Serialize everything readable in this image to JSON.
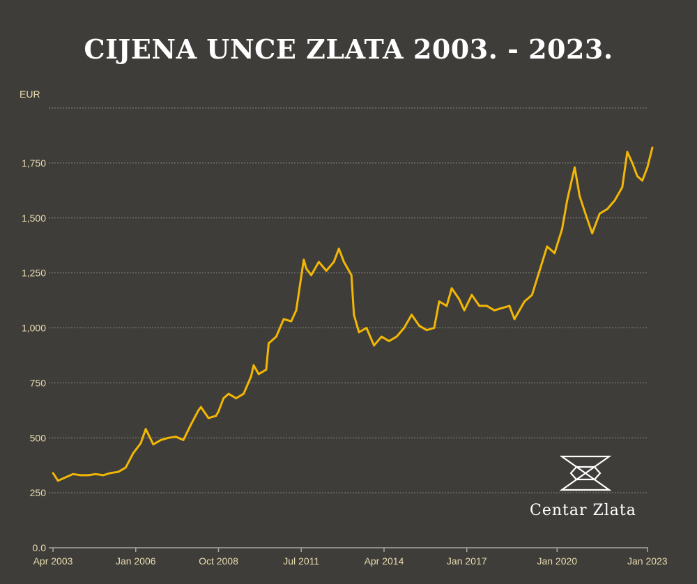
{
  "title": "CIJENA UNCE ZLATA 2003. - 2023.",
  "brand": {
    "name": "Centar Zlata",
    "icon": "hourglass-logo-icon"
  },
  "colors": {
    "background": "#3f3d39",
    "line": "#f2b705",
    "text": "#e8dcb0",
    "grid": "#8a8780"
  },
  "chart_data": {
    "type": "line",
    "title": "CIJENA UNCE ZLATA 2003. - 2023.",
    "ylabel": "EUR",
    "xlabel": "",
    "ylim": [
      0,
      2000
    ],
    "xlim": [
      "2003-04",
      "2023-03"
    ],
    "yticks": [
      0,
      250,
      500,
      750,
      1000,
      1250,
      1500,
      1750
    ],
    "ytick_labels": [
      "0.0",
      "250",
      "500",
      "750",
      "1,000",
      "1,250",
      "1,500",
      "1,750"
    ],
    "xticks": [
      "2003-04",
      "2006-01",
      "2008-10",
      "2011-07",
      "2014-04",
      "2017-01",
      "2020-01",
      "2023-01"
    ],
    "xtick_labels": [
      "Apr 2003",
      "Jan 2006",
      "Oct 2008",
      "Jul 2011",
      "Apr 2014",
      "Jan 2017",
      "Jan 2020",
      "Jan 2023"
    ],
    "grid": true,
    "legend": "none",
    "series": [
      {
        "x": [
          "2003-04",
          "2003-06",
          "2003-09",
          "2003-12",
          "2004-03",
          "2004-06",
          "2004-09",
          "2004-12",
          "2005-03",
          "2005-06",
          "2005-09",
          "2005-12",
          "2006-03",
          "2006-05",
          "2006-08",
          "2006-11",
          "2007-02",
          "2007-05",
          "2007-08",
          "2007-11",
          "2008-02",
          "2008-03",
          "2008-06",
          "2008-09",
          "2008-10",
          "2008-12",
          "2009-02",
          "2009-05",
          "2009-08",
          "2009-11",
          "2009-12",
          "2010-02",
          "2010-05",
          "2010-06",
          "2010-09",
          "2010-12",
          "2011-03",
          "2011-05",
          "2011-08",
          "2011-09",
          "2011-11",
          "2012-02",
          "2012-05",
          "2012-08",
          "2012-10",
          "2012-12",
          "2013-03",
          "2013-04",
          "2013-06",
          "2013-09",
          "2013-12",
          "2014-03",
          "2014-06",
          "2014-09",
          "2014-12",
          "2015-03",
          "2015-06",
          "2015-09",
          "2015-12",
          "2016-02",
          "2016-05",
          "2016-07",
          "2016-10",
          "2016-12",
          "2017-03",
          "2017-06",
          "2017-09",
          "2017-12",
          "2018-03",
          "2018-06",
          "2018-08",
          "2018-10",
          "2018-12",
          "2019-03",
          "2019-06",
          "2019-09",
          "2019-12",
          "2020-03",
          "2020-05",
          "2020-08",
          "2020-10",
          "2020-12",
          "2021-03",
          "2021-06",
          "2021-09",
          "2021-12",
          "2022-03",
          "2022-05",
          "2022-07",
          "2022-09",
          "2022-11",
          "2023-01",
          "2023-03"
        ],
        "y": [
          340,
          305,
          320,
          335,
          330,
          330,
          335,
          330,
          340,
          345,
          365,
          430,
          475,
          540,
          470,
          490,
          500,
          505,
          490,
          560,
          625,
          640,
          590,
          600,
          620,
          680,
          700,
          680,
          700,
          780,
          830,
          790,
          810,
          930,
          960,
          1040,
          1030,
          1080,
          1310,
          1270,
          1240,
          1300,
          1260,
          1300,
          1360,
          1300,
          1240,
          1060,
          980,
          1000,
          920,
          960,
          940,
          960,
          1000,
          1060,
          1010,
          990,
          1000,
          1120,
          1100,
          1180,
          1130,
          1080,
          1150,
          1100,
          1100,
          1080,
          1090,
          1100,
          1040,
          1080,
          1120,
          1150,
          1260,
          1370,
          1340,
          1450,
          1580,
          1730,
          1600,
          1530,
          1430,
          1520,
          1540,
          1580,
          1640,
          1800,
          1750,
          1690,
          1670,
          1730,
          1820
        ]
      }
    ]
  }
}
